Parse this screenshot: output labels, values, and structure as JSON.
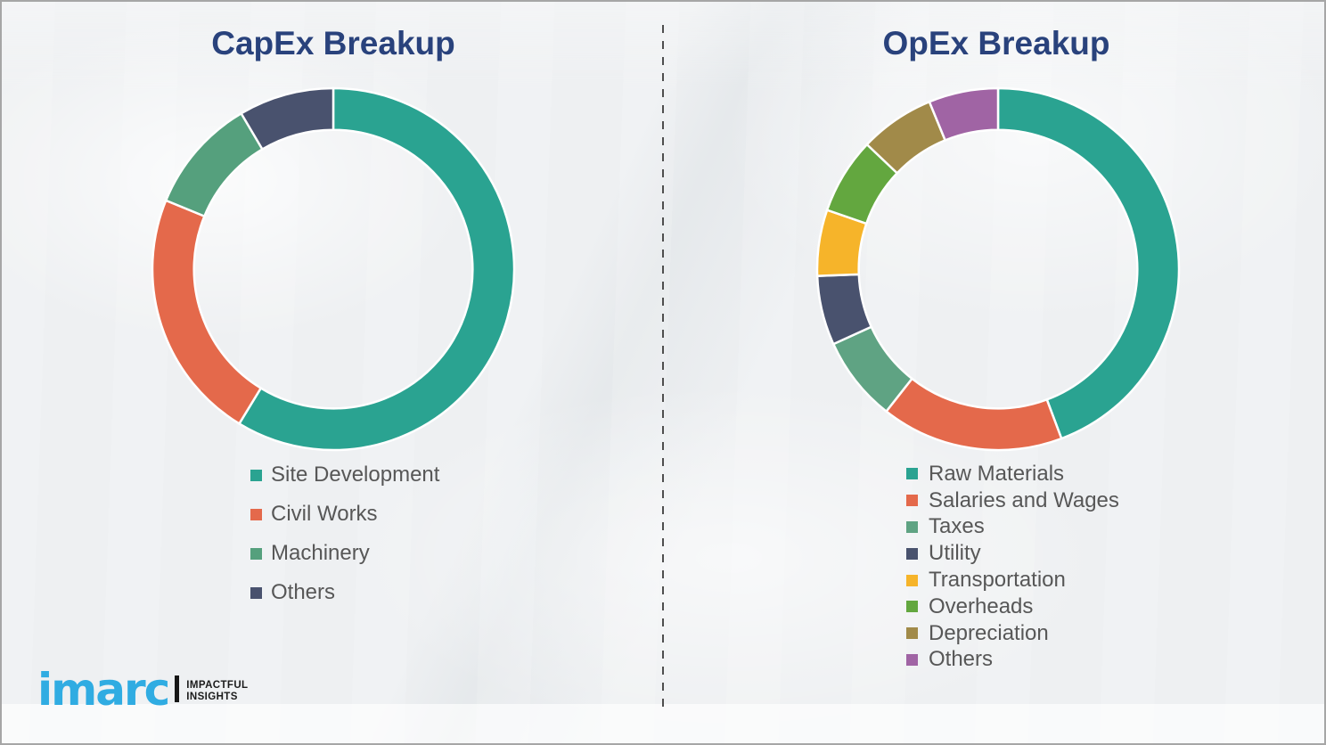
{
  "page": {
    "background_color": "#eef0f2",
    "border_color": "#a6a6a6",
    "divider": "vertical dashed line between panels"
  },
  "chart_data": [
    {
      "type": "pie",
      "subtype": "donut",
      "title": "CapEx Breakup",
      "labels": [
        "Site Development",
        "Civil Works",
        "Machinery",
        "Others"
      ],
      "values": [
        58.7,
        22.5,
        10.3,
        8.5
      ],
      "values_note": "percent of ring, estimated from arc angles; no data labels shown",
      "colors": [
        "#2aa391",
        "#e4694b",
        "#55a07d",
        "#49526e"
      ],
      "start_angle_deg": 0,
      "direction": "clockwise",
      "inner_radius_ratio": 0.77,
      "segment_gap_color": "#ffffff",
      "legend_position": "below-chart-left",
      "data_labels_shown": false
    },
    {
      "type": "pie",
      "subtype": "donut",
      "title": "OpEx Breakup",
      "labels": [
        "Raw Materials",
        "Salaries and Wages",
        "Taxes",
        "Utility",
        "Transportation",
        "Overheads",
        "Depreciation",
        "Others"
      ],
      "values": [
        44.3,
        16.3,
        7.6,
        6.2,
        5.9,
        6.8,
        6.7,
        6.2
      ],
      "values_note": "percent of ring, estimated from arc angles; no data labels shown",
      "colors": [
        "#2aa391",
        "#e4694b",
        "#5fa383",
        "#49526e",
        "#f6b42a",
        "#63a73f",
        "#a18a49",
        "#a064a4"
      ],
      "start_angle_deg": 0,
      "direction": "clockwise",
      "inner_radius_ratio": 0.77,
      "segment_gap_color": "#ffffff",
      "legend_position": "below-chart-left",
      "data_labels_shown": false
    }
  ],
  "styles": {
    "title_color": "#29427c",
    "legend_text_color": "#575757"
  },
  "logo": {
    "brand": "imarc",
    "brand_color": "#30ace2",
    "tagline_line1": "IMPACTFUL",
    "tagline_line2": "INSIGHTS"
  }
}
